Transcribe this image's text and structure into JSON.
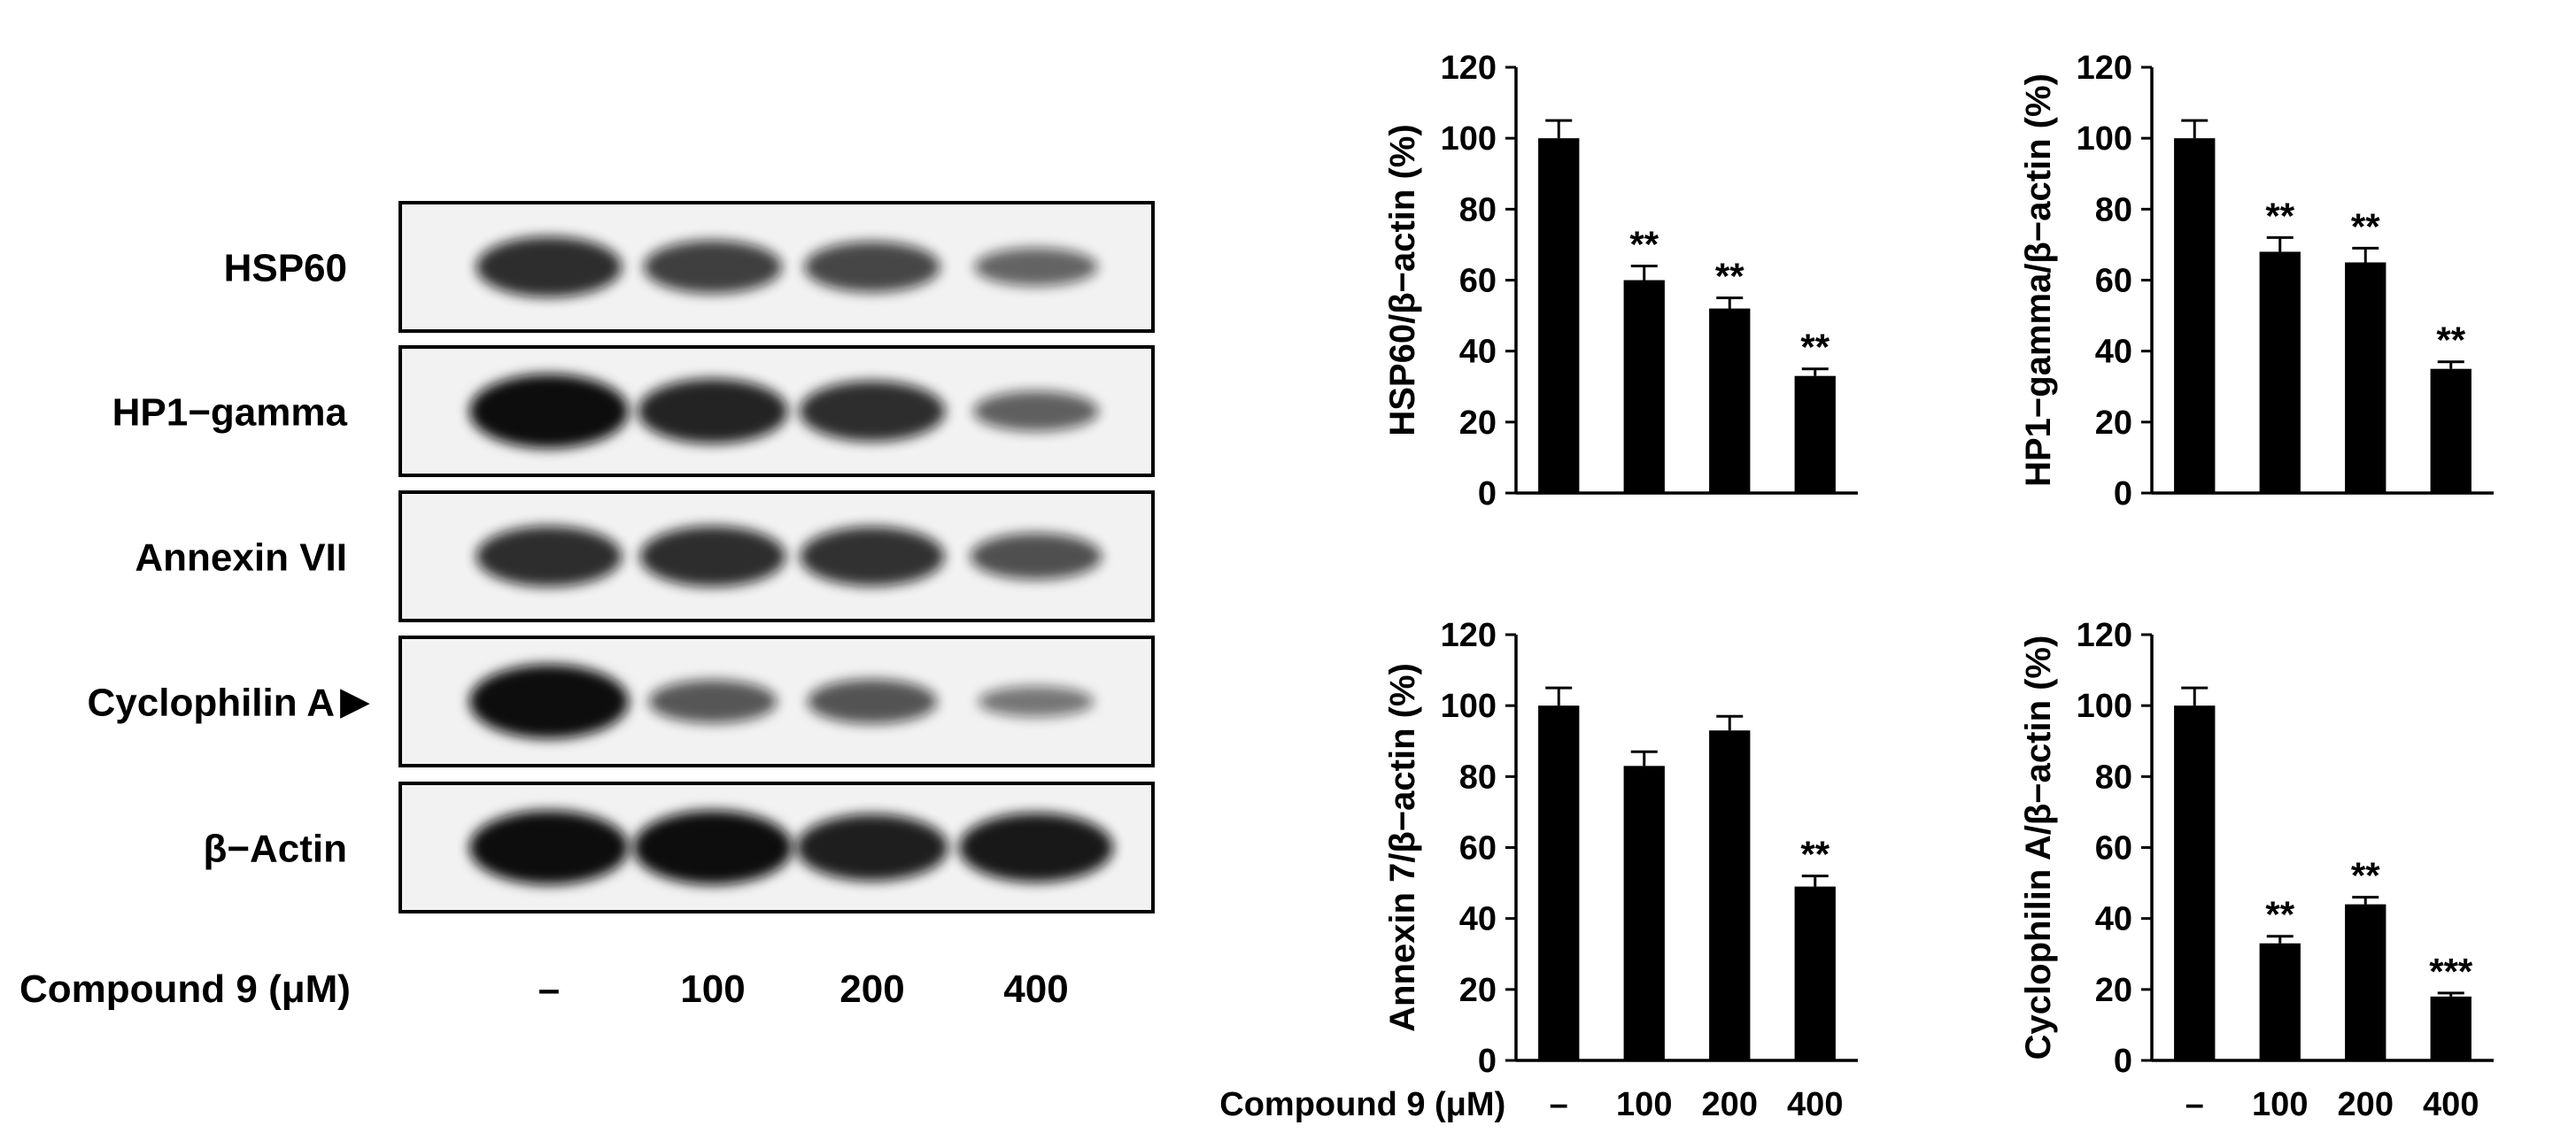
{
  "blot": {
    "rows": [
      {
        "name": "hsp60-row",
        "label": "HSP60",
        "intensity": [
          0.78,
          0.66,
          0.62,
          0.42
        ]
      },
      {
        "name": "hp1-gamma-row",
        "label": "HP1−gamma",
        "intensity": [
          1.0,
          0.85,
          0.78,
          0.45
        ]
      },
      {
        "name": "annexin-vii-row",
        "label": "Annexin VII",
        "intensity": [
          0.78,
          0.78,
          0.76,
          0.55
        ]
      },
      {
        "name": "cyclophilin-a-row",
        "label": "Cyclophilin A",
        "arrow": "▶",
        "intensity": [
          1.0,
          0.5,
          0.52,
          0.3
        ]
      },
      {
        "name": "beta-actin-row",
        "label": "β−Actin",
        "intensity": [
          1.0,
          1.0,
          0.88,
          0.92
        ]
      }
    ],
    "treatment_label": "Compound 9 (μM)",
    "lanes": [
      "–",
      "100",
      "200",
      "400"
    ]
  },
  "chart_data": [
    {
      "type": "bar",
      "categories": [
        "–",
        "100",
        "200",
        "400"
      ],
      "values": [
        100,
        60,
        52,
        33
      ],
      "errors": [
        5,
        4,
        3,
        2
      ],
      "significance": [
        "",
        "**",
        "**",
        "**"
      ],
      "ylabel": "HSP60/β−actin (%)",
      "ylim": [
        0,
        120
      ],
      "yticks": [
        "0",
        "20",
        "40",
        "60",
        "80",
        "100",
        "120"
      ],
      "xlabel": "",
      "show_xticks": false
    },
    {
      "type": "bar",
      "categories": [
        "–",
        "100",
        "200",
        "400"
      ],
      "values": [
        100,
        68,
        65,
        35
      ],
      "errors": [
        5,
        4,
        4,
        2
      ],
      "significance": [
        "",
        "**",
        "**",
        "**"
      ],
      "ylabel": "HP1−gamma/β−actin (%)",
      "ylim": [
        0,
        120
      ],
      "yticks": [
        "0",
        "20",
        "40",
        "60",
        "80",
        "100",
        "120"
      ],
      "xlabel": "",
      "show_xticks": false
    },
    {
      "type": "bar",
      "categories": [
        "–",
        "100",
        "200",
        "400"
      ],
      "values": [
        100,
        83,
        93,
        49
      ],
      "errors": [
        5,
        4,
        4,
        3
      ],
      "significance": [
        "",
        "",
        "",
        "**"
      ],
      "ylabel": "Annexin 7/β−actin (%)",
      "ylim": [
        0,
        120
      ],
      "yticks": [
        "0",
        "20",
        "40",
        "60",
        "80",
        "100",
        "120"
      ],
      "xlabel": "Compound 9 (μM)",
      "show_xticks": true
    },
    {
      "type": "bar",
      "categories": [
        "–",
        "100",
        "200",
        "400"
      ],
      "values": [
        100,
        33,
        44,
        18
      ],
      "errors": [
        5,
        2,
        2,
        1
      ],
      "significance": [
        "",
        "**",
        "**",
        "***"
      ],
      "ylabel": "Cyclophilin A/β−actin (%)",
      "ylim": [
        0,
        120
      ],
      "yticks": [
        "0",
        "20",
        "40",
        "60",
        "80",
        "100",
        "120"
      ],
      "xlabel": "",
      "show_xticks": true
    }
  ],
  "colors": {
    "bar": "#000000",
    "axis": "#000000",
    "blot_bg": "#f2f2f2",
    "band": "#111111"
  }
}
